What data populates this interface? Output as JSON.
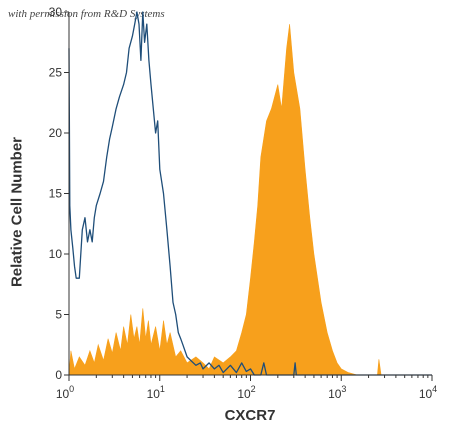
{
  "watermark": "with permission from R&D Systems",
  "chart_data": {
    "type": "area",
    "xlabel": "CXCR7",
    "ylabel": "Relative Cell Number",
    "xscale": "log",
    "xlim": [
      1,
      10000
    ],
    "ylim": [
      0,
      30
    ],
    "yticks": [
      0,
      5,
      10,
      15,
      20,
      25,
      30
    ],
    "xticks": [
      {
        "value": 1,
        "base": "10",
        "exp": "0"
      },
      {
        "value": 10,
        "base": "10",
        "exp": "1"
      },
      {
        "value": 100,
        "base": "10",
        "exp": "2"
      },
      {
        "value": 1000,
        "base": "10",
        "exp": "3"
      },
      {
        "value": 10000,
        "base": "10",
        "exp": "4"
      }
    ],
    "colors": {
      "filled": "#f7a01c",
      "outline": "#1f4e79",
      "axis": "#333333"
    },
    "series": [
      {
        "style": "filled",
        "points": [
          [
            1,
            0
          ],
          [
            1.05,
            2
          ],
          [
            1.15,
            0.5
          ],
          [
            1.3,
            1.5
          ],
          [
            1.5,
            0.8
          ],
          [
            1.7,
            2
          ],
          [
            1.9,
            1
          ],
          [
            2.1,
            2.5
          ],
          [
            2.4,
            1.2
          ],
          [
            2.7,
            3
          ],
          [
            3.0,
            1.8
          ],
          [
            3.3,
            3.5
          ],
          [
            3.7,
            2
          ],
          [
            4.0,
            4
          ],
          [
            4.4,
            2.5
          ],
          [
            4.8,
            5
          ],
          [
            5.2,
            3
          ],
          [
            5.6,
            4
          ],
          [
            6.0,
            2.5
          ],
          [
            6.5,
            5.5
          ],
          [
            7.0,
            3
          ],
          [
            7.5,
            4.5
          ],
          [
            8.0,
            2.5
          ],
          [
            9.0,
            4
          ],
          [
            10,
            2
          ],
          [
            11,
            4.5
          ],
          [
            12,
            2.5
          ],
          [
            13,
            3.5
          ],
          [
            15,
            1.5
          ],
          [
            17,
            2
          ],
          [
            20,
            1
          ],
          [
            25,
            1.5
          ],
          [
            30,
            1
          ],
          [
            35,
            0.5
          ],
          [
            40,
            1.5
          ],
          [
            50,
            1
          ],
          [
            60,
            1.5
          ],
          [
            70,
            2
          ],
          [
            80,
            3.5
          ],
          [
            90,
            5
          ],
          [
            100,
            8
          ],
          [
            110,
            11
          ],
          [
            120,
            14
          ],
          [
            130,
            18
          ],
          [
            150,
            21
          ],
          [
            170,
            22
          ],
          [
            200,
            24
          ],
          [
            220,
            22
          ],
          [
            250,
            27
          ],
          [
            270,
            29
          ],
          [
            300,
            25
          ],
          [
            350,
            22
          ],
          [
            400,
            17
          ],
          [
            450,
            13
          ],
          [
            500,
            10
          ],
          [
            600,
            6
          ],
          [
            700,
            3.5
          ],
          [
            800,
            2
          ],
          [
            900,
            1
          ],
          [
            1000,
            0.5
          ],
          [
            1200,
            0.2
          ],
          [
            1500,
            0
          ],
          [
            2500,
            0
          ],
          [
            2600,
            1.3
          ],
          [
            2750,
            0
          ],
          [
            10000,
            0
          ]
        ]
      },
      {
        "style": "outline",
        "points": [
          [
            1,
            27
          ],
          [
            1.02,
            14
          ],
          [
            1.05,
            12
          ],
          [
            1.1,
            10.5
          ],
          [
            1.15,
            9
          ],
          [
            1.2,
            8
          ],
          [
            1.3,
            8
          ],
          [
            1.35,
            10
          ],
          [
            1.4,
            12
          ],
          [
            1.5,
            13
          ],
          [
            1.6,
            11
          ],
          [
            1.7,
            12
          ],
          [
            1.8,
            11
          ],
          [
            1.9,
            13
          ],
          [
            2.0,
            14
          ],
          [
            2.2,
            15
          ],
          [
            2.4,
            16
          ],
          [
            2.6,
            18
          ],
          [
            2.8,
            19.5
          ],
          [
            3.0,
            20.5
          ],
          [
            3.3,
            22
          ],
          [
            3.6,
            23
          ],
          [
            4.0,
            24
          ],
          [
            4.3,
            25
          ],
          [
            4.6,
            27
          ],
          [
            5.0,
            28
          ],
          [
            5.3,
            29
          ],
          [
            5.6,
            30
          ],
          [
            5.9,
            29
          ],
          [
            6.2,
            26
          ],
          [
            6.5,
            30
          ],
          [
            6.8,
            27.5
          ],
          [
            7.2,
            29
          ],
          [
            7.6,
            26
          ],
          [
            8.0,
            24
          ],
          [
            8.5,
            22
          ],
          [
            9.0,
            20
          ],
          [
            9.5,
            21
          ],
          [
            10,
            17
          ],
          [
            11,
            15
          ],
          [
            12,
            12
          ],
          [
            13,
            9
          ],
          [
            14,
            6
          ],
          [
            15,
            5
          ],
          [
            16,
            3.5
          ],
          [
            17,
            3
          ],
          [
            18,
            2.5
          ],
          [
            20,
            1.5
          ],
          [
            22,
            1.2
          ],
          [
            25,
            0.8
          ],
          [
            28,
            1
          ],
          [
            30,
            0.5
          ],
          [
            35,
            1
          ],
          [
            40,
            0.5
          ],
          [
            45,
            0.8
          ],
          [
            50,
            0.2
          ],
          [
            60,
            0.8
          ],
          [
            70,
            0.2
          ],
          [
            80,
            1
          ],
          [
            90,
            0.3
          ],
          [
            100,
            0.5
          ],
          [
            110,
            0
          ],
          [
            130,
            0
          ],
          [
            140,
            1
          ],
          [
            150,
            0
          ],
          [
            300,
            0
          ],
          [
            310,
            1
          ],
          [
            320,
            0
          ],
          [
            10000,
            0
          ]
        ]
      }
    ]
  }
}
